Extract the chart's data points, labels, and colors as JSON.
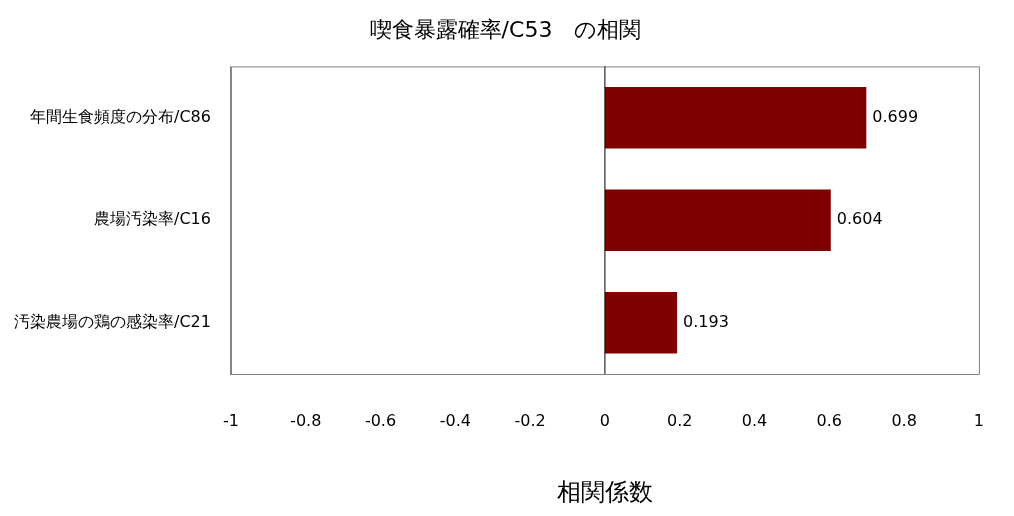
{
  "chart_data": {
    "type": "bar",
    "orientation": "horizontal",
    "title": "喫食暴露確率/C53　の相関",
    "xlabel": "相関係数",
    "categories": [
      "年間生食頻度の分布/C86",
      "農場汚染率/C16",
      "汚染農場の鶏の感染率/C21"
    ],
    "values": [
      0.699,
      0.604,
      0.193
    ],
    "color": "#800000",
    "xlim": [
      -1,
      1
    ],
    "xticks": [
      -1,
      -0.8,
      -0.6,
      -0.4,
      -0.2,
      0,
      0.2,
      0.4,
      0.6,
      0.8,
      1
    ],
    "ref_lines": [
      {
        "axis": "x",
        "value": 0,
        "color": "#000000"
      }
    ],
    "grid": false,
    "legend": false,
    "data_labels": true
  }
}
